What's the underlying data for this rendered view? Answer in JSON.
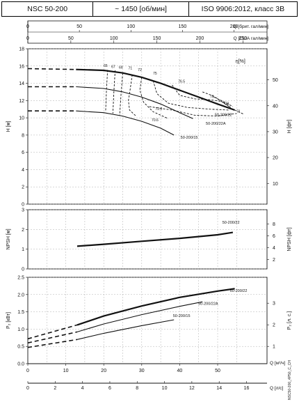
{
  "header": {
    "model": "NSC 50-200",
    "speed": "~ 1450 [об/мин]",
    "standard": "ISO 9906:2012, класс 3B"
  },
  "side_code": "NSC50-200_4P50_C_CH",
  "chart_data": [
    {
      "type": "line",
      "x_label": "Q [брит. гал/мин]",
      "x_ticks": [
        0,
        50,
        100,
        150,
        200
      ],
      "x_range": [
        0,
        232
      ],
      "x2_label": "Q [США гал/мин]",
      "x2_ticks": [
        0,
        50,
        100,
        150,
        200,
        250
      ],
      "x2_range": [
        0,
        278
      ],
      "flow_axis_label": "Q [м³/ч]",
      "flow_range": [
        0,
        63
      ],
      "flow_ticks": [
        0,
        10,
        20,
        30,
        40,
        50
      ]
    },
    {
      "type": "line",
      "ylabel": "H [м]",
      "ylabel2": "H [фт]",
      "ylim": [
        0,
        18
      ],
      "yticks": [
        0,
        2,
        4,
        6,
        8,
        10,
        12,
        14,
        16,
        18
      ],
      "yticks2": [
        10,
        20,
        30,
        40,
        50
      ],
      "efficiency_symbol": "η[%]",
      "series": [
        {
          "name": "50-200/22",
          "style": "bold",
          "x": [
            12.7,
            20,
            25,
            30,
            35,
            40,
            45,
            50,
            54.5
          ],
          "y": [
            15.6,
            15.5,
            15.2,
            14.7,
            14.0,
            13.2,
            12.4,
            11.6,
            10.9
          ]
        },
        {
          "name": "50-200/22A",
          "style": "thin",
          "x": [
            12.7,
            20,
            25,
            30,
            35,
            40,
            43.5
          ],
          "y": [
            13.6,
            13.4,
            13.0,
            12.4,
            11.6,
            10.6,
            9.9
          ]
        },
        {
          "name": "50-200/15",
          "style": "thin",
          "x": [
            12.7,
            20,
            25,
            30,
            35,
            38.5
          ],
          "y": [
            10.8,
            10.6,
            10.2,
            9.6,
            8.8,
            8.0
          ]
        },
        {
          "name": "npsh",
          "style": "dashed",
          "x": [
            0,
            12.7
          ],
          "y": [
            15.7,
            15.6
          ]
        },
        {
          "name": "npsh",
          "style": "dashed",
          "x": [
            0,
            12.7
          ],
          "y": [
            13.6,
            13.6
          ]
        },
        {
          "name": "npsh",
          "style": "dashed",
          "x": [
            0,
            12.7
          ],
          "y": [
            10.8,
            10.8
          ]
        }
      ],
      "efficiency_labels": [
        {
          "text": "65",
          "x": 20.5,
          "y": 15.9
        },
        {
          "text": "67",
          "x": 22.5,
          "y": 15.8
        },
        {
          "text": "69",
          "x": 24.5,
          "y": 15.7
        },
        {
          "text": "71",
          "x": 27.0,
          "y": 15.6
        },
        {
          "text": "72",
          "x": 29.5,
          "y": 15.4
        },
        {
          "text": "75",
          "x": 33.5,
          "y": 15.0
        },
        {
          "text": "76.5",
          "x": 40.5,
          "y": 14.1
        },
        {
          "text": "75",
          "x": 48.5,
          "y": 12.3
        },
        {
          "text": "73",
          "x": 52.5,
          "y": 11.5
        },
        {
          "text": "71",
          "x": 55.5,
          "y": 10.6
        },
        {
          "text": "72.2",
          "x": 34.5,
          "y": 10.9
        },
        {
          "text": "70.6",
          "x": 33.5,
          "y": 9.6
        }
      ],
      "efficiency_curves": [
        {
          "x": [
            21,
            20.7,
            20.5
          ],
          "y": [
            15.55,
            13.0,
            10.7
          ]
        },
        {
          "x": [
            23,
            22.7,
            22.4
          ],
          "y": [
            15.5,
            13.2,
            10.5
          ]
        },
        {
          "x": [
            25,
            24.6,
            24.2
          ],
          "y": [
            15.2,
            13.0,
            10.3
          ]
        },
        {
          "x": [
            27.5,
            27.0,
            26.5,
            26.8,
            28.5
          ],
          "y": [
            15.0,
            13.4,
            12.0,
            10.9,
            10.2
          ]
        },
        {
          "x": [
            30,
            29.5,
            30.5,
            33,
            37
          ],
          "y": [
            14.7,
            13.2,
            11.8,
            10.7,
            9.9
          ]
        },
        {
          "x": [
            33,
            34,
            37,
            42,
            48,
            53
          ],
          "y": [
            14.3,
            12.8,
            11.7,
            11.2,
            11.0,
            10.9
          ]
        },
        {
          "x": [
            38,
            40,
            44,
            48,
            51,
            53
          ],
          "y": [
            13.8,
            12.6,
            12.2,
            12.1,
            11.9,
            11.3
          ]
        },
        {
          "x": [
            46,
            49,
            52
          ],
          "y": [
            13.0,
            12.5,
            11.6
          ]
        },
        {
          "x": [
            49,
            51.5,
            54
          ],
          "y": [
            12.4,
            11.9,
            11.3
          ]
        },
        {
          "x": [
            51.5,
            54,
            57
          ],
          "y": [
            11.8,
            11.0,
            10.4
          ]
        },
        {
          "x": [
            32,
            38,
            44,
            50,
            55
          ],
          "y": [
            11.3,
            10.9,
            10.3,
            10.2,
            10.5
          ]
        }
      ],
      "series_labels": [
        {
          "text": "50-200/22",
          "x": 51.5,
          "y": 10.2
        },
        {
          "text": "50-200/22A",
          "x": 49.5,
          "y": 9.2
        },
        {
          "text": "50-200/15",
          "x": 42.5,
          "y": 7.6
        }
      ]
    },
    {
      "type": "line",
      "ylabel": "NPSH [м]",
      "ylabel2": "NPSH [фт]",
      "ylim": [
        0,
        3
      ],
      "yticks": [
        0,
        1,
        2,
        3
      ],
      "yticks2": [
        2,
        4,
        6,
        8
      ],
      "series": [
        {
          "name": "50-200/22",
          "style": "bold",
          "x": [
            13,
            20,
            30,
            40,
            50,
            54
          ],
          "y": [
            1.15,
            1.25,
            1.4,
            1.55,
            1.73,
            1.85
          ]
        }
      ],
      "series_labels": [
        {
          "text": "50-200/22",
          "x": 53.5,
          "y": 2.3
        }
      ]
    },
    {
      "type": "line",
      "ylabel": "P₂ [кВт]",
      "ylabel2": "P₂ [л. с.]",
      "ylim": [
        0,
        2.5
      ],
      "yticks": [
        0,
        0.5,
        1.0,
        1.5,
        2.0,
        2.5
      ],
      "yticks2": [
        1,
        2,
        3
      ],
      "series": [
        {
          "name": "50-200/22",
          "style": "bold",
          "x": [
            13,
            20,
            30,
            40,
            50,
            54.5
          ],
          "y": [
            1.12,
            1.38,
            1.67,
            1.92,
            2.1,
            2.17
          ]
        },
        {
          "name": "50-200/22",
          "style": "dashed",
          "x": [
            0,
            13
          ],
          "y": [
            0.72,
            1.12
          ]
        },
        {
          "name": "50-200/22A",
          "style": "thin",
          "x": [
            13,
            20,
            30,
            40,
            46
          ],
          "y": [
            0.92,
            1.15,
            1.42,
            1.66,
            1.79
          ]
        },
        {
          "name": "50-200/22A",
          "style": "dashed",
          "x": [
            0,
            13
          ],
          "y": [
            0.6,
            0.92
          ]
        },
        {
          "name": "50-200/15",
          "style": "thin",
          "x": [
            13,
            20,
            30,
            38.5
          ],
          "y": [
            0.7,
            0.88,
            1.1,
            1.27
          ]
        },
        {
          "name": "50-200/15",
          "style": "dashed",
          "x": [
            0,
            13
          ],
          "y": [
            0.47,
            0.7
          ]
        }
      ],
      "series_labels": [
        {
          "text": "50-200/22",
          "x": 55.5,
          "y": 2.08
        },
        {
          "text": "50-200/22A",
          "x": 47.5,
          "y": 1.7
        },
        {
          "text": "50-200/15",
          "x": 40.5,
          "y": 1.35
        }
      ]
    },
    {
      "type": "line",
      "x_label": "Q [м³/ч]",
      "x_ticks": [
        0,
        10,
        20,
        30,
        40,
        50
      ],
      "x_range": [
        0,
        63
      ],
      "x2_label": "Q [л/с]",
      "x2_ticks": [
        0,
        2,
        4,
        6,
        8,
        10,
        12,
        14,
        16
      ],
      "x2_range": [
        0,
        17.5
      ]
    }
  ]
}
